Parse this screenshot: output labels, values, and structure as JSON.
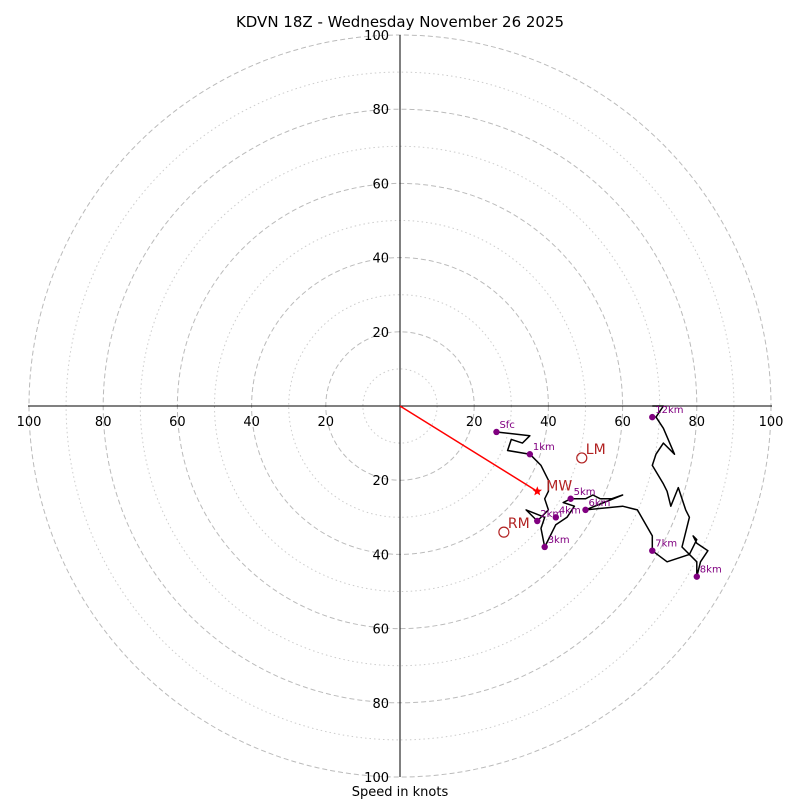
{
  "chart_data": {
    "type": "hodograph",
    "title": "KDVN 18Z - Wednesday November 26 2025",
    "xlabel": "Speed in knots",
    "xlim": [
      -100,
      100
    ],
    "ylim": [
      -100,
      100
    ],
    "rings_major": [
      20,
      40,
      60,
      80,
      100
    ],
    "rings_minor": [
      10,
      30,
      50,
      70,
      90
    ],
    "x_tick_labels": [
      "100",
      "80",
      "60",
      "40",
      "20",
      "20",
      "40",
      "60",
      "80",
      "100"
    ],
    "y_tick_labels": [
      "100",
      "80",
      "60",
      "40",
      "20",
      "20",
      "40",
      "60",
      "80",
      "100"
    ],
    "colors": {
      "profile": "#000000",
      "markers": "#800080",
      "motion": "#b22222",
      "mean_wind_line": "#ff0000",
      "grid": "#bbbbbb"
    },
    "profile": [
      [
        26,
        -7
      ],
      [
        35,
        -8
      ],
      [
        33,
        -10
      ],
      [
        30,
        -9
      ],
      [
        29,
        -12
      ],
      [
        35,
        -13
      ],
      [
        38,
        -16
      ],
      [
        40,
        -20
      ],
      [
        40,
        -23
      ],
      [
        39,
        -25
      ],
      [
        40,
        -28
      ],
      [
        37,
        -31
      ],
      [
        34,
        -28
      ],
      [
        39,
        -30
      ],
      [
        38,
        -33
      ],
      [
        39,
        -38
      ],
      [
        42,
        -32
      ],
      [
        45,
        -30
      ],
      [
        47,
        -27
      ],
      [
        44,
        -26
      ],
      [
        46,
        -25
      ],
      [
        50,
        -25
      ],
      [
        52,
        -24
      ],
      [
        54,
        -25
      ],
      [
        57,
        -25
      ],
      [
        60,
        -24
      ],
      [
        55,
        -26
      ],
      [
        50,
        -28
      ],
      [
        60,
        -27
      ],
      [
        64,
        -28
      ],
      [
        68,
        -35
      ],
      [
        68,
        -39
      ],
      [
        72,
        -42
      ],
      [
        78,
        -40
      ],
      [
        80,
        -36
      ],
      [
        79,
        -35
      ],
      [
        80,
        -37
      ],
      [
        83,
        -39
      ],
      [
        81,
        -42
      ],
      [
        80,
        -46
      ],
      [
        80,
        -42
      ],
      [
        76,
        -38
      ],
      [
        78,
        -30
      ],
      [
        77,
        -28
      ],
      [
        75,
        -22
      ],
      [
        73,
        -27
      ],
      [
        72,
        -23
      ],
      [
        71,
        -21
      ],
      [
        68,
        -16
      ],
      [
        69,
        -13
      ],
      [
        71,
        -10
      ],
      [
        74,
        -13
      ],
      [
        71,
        -6
      ],
      [
        69,
        -3
      ],
      [
        71,
        0
      ],
      [
        69,
        0
      ],
      [
        68,
        0
      ]
    ],
    "height_markers": [
      {
        "label": "Sfc",
        "x": 26,
        "y": -7
      },
      {
        "label": "1km",
        "x": 35,
        "y": -13
      },
      {
        "label": "2km",
        "x": 37,
        "y": -31
      },
      {
        "label": "3km",
        "x": 39,
        "y": -38
      },
      {
        "label": "4km",
        "x": 42,
        "y": -30
      },
      {
        "label": "5km",
        "x": 46,
        "y": -25
      },
      {
        "label": "6km",
        "x": 50,
        "y": -28
      },
      {
        "label": "7km",
        "x": 68,
        "y": -39
      },
      {
        "label": "8km",
        "x": 80,
        "y": -46
      },
      {
        "label": "12km",
        "x": 68,
        "y": -3
      }
    ],
    "storm_motion": [
      {
        "label": "LM",
        "x": 49,
        "y": -14
      },
      {
        "label": "RM",
        "x": 28,
        "y": -34
      }
    ],
    "mean_wind": {
      "label": "MW",
      "x": 37,
      "y": -23
    }
  }
}
